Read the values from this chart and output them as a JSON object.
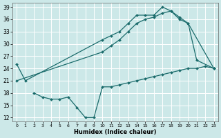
{
  "xlabel": "Humidex (Indice chaleur)",
  "xlim": [
    -0.5,
    23.5
  ],
  "ylim": [
    11,
    40
  ],
  "yticks": [
    12,
    15,
    18,
    21,
    24,
    27,
    30,
    33,
    36,
    39
  ],
  "xticks": [
    0,
    1,
    2,
    3,
    4,
    5,
    6,
    7,
    8,
    9,
    10,
    11,
    12,
    13,
    14,
    15,
    16,
    17,
    18,
    19,
    20,
    21,
    22,
    23
  ],
  "bg_color": "#cce8e8",
  "line_color": "#1a6b6b",
  "grid_color": "#ffffff",
  "line1_x": [
    0,
    1,
    10,
    11,
    12,
    13,
    14,
    15,
    16,
    17,
    18,
    19,
    20,
    23
  ],
  "line1_y": [
    25,
    21,
    31,
    32,
    33,
    35,
    37,
    37,
    37,
    39,
    38,
    36,
    35,
    24
  ],
  "line2_x": [
    0,
    10,
    11,
    12,
    13,
    14,
    15,
    16,
    17,
    18,
    19,
    20,
    21,
    23
  ],
  "line2_y": [
    21,
    28,
    29.5,
    31,
    33,
    35,
    36,
    36.5,
    37.5,
    38,
    36.5,
    35,
    26,
    24
  ],
  "line3_x": [
    2,
    3,
    4,
    5,
    6,
    7,
    8,
    9,
    10,
    11,
    12,
    13,
    14,
    15,
    16,
    17,
    18,
    19,
    20,
    21,
    22,
    23
  ],
  "line3_y": [
    18,
    17,
    16.5,
    16.5,
    17,
    14.5,
    12,
    12,
    19.5,
    19.5,
    20,
    20.5,
    21,
    21.5,
    22,
    22.5,
    23,
    23.5,
    24,
    24,
    24.5,
    24
  ]
}
